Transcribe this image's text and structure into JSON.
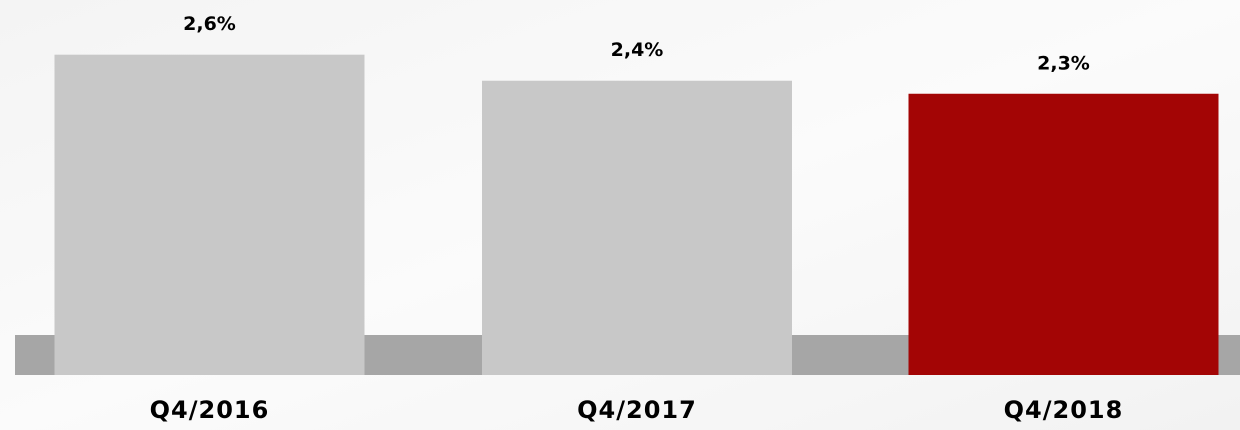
{
  "chart_data": {
    "type": "bar",
    "categories": [
      "Q4/2016",
      "Q4/2017",
      "Q4/2018"
    ],
    "values": [
      2.6,
      2.4,
      2.3
    ],
    "value_labels": [
      "2,6%",
      "2,4%",
      "2,3%"
    ],
    "colors": [
      "#c8c8c8",
      "#c8c8c8",
      "#a30505"
    ],
    "ylim": [
      0.14,
      3.02
    ]
  }
}
